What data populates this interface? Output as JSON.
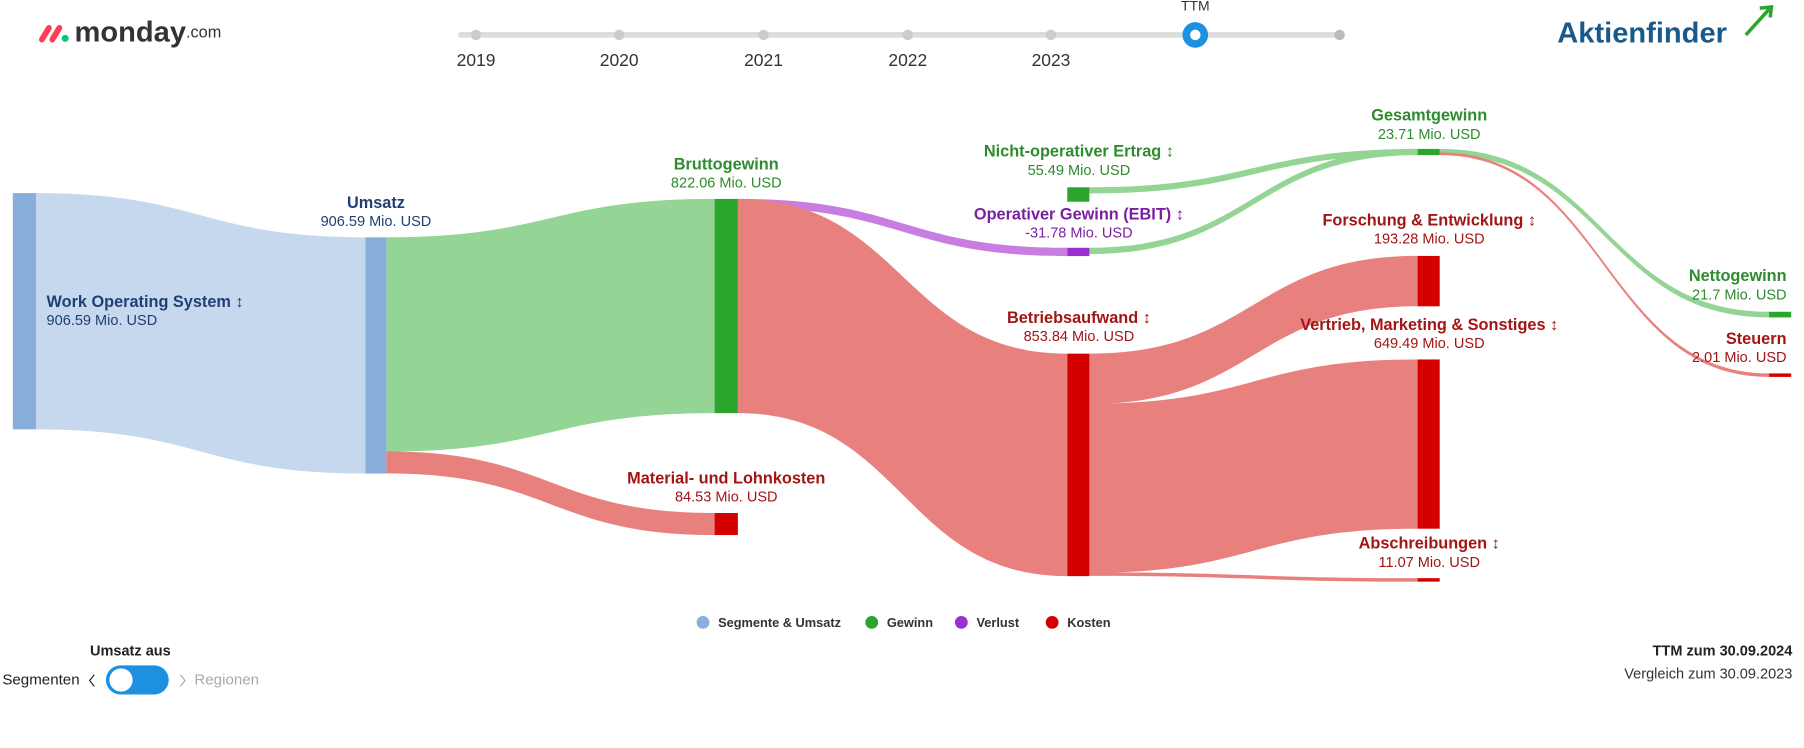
{
  "header": {
    "logo": "monday",
    "logo_suffix": ".com",
    "brand": "Aktienfinder"
  },
  "timeline": {
    "labels": [
      "2019",
      "2020",
      "2021",
      "2022",
      "2023",
      "TTM"
    ]
  },
  "chart_data": {
    "type": "sankey",
    "unit_scale": 0.224,
    "legend": [
      {
        "name": "Segmente & Umsatz",
        "color": "#8aaedc",
        "link_color": "#c5d8ee",
        "text_color": "#213f73"
      },
      {
        "name": "Gewinn",
        "color": "#2ca52c",
        "link_color": "#94d494",
        "text_color": "#2e8b2e"
      },
      {
        "name": "Verlust",
        "color": "#9b30d0",
        "link_color": "#c77ee0",
        "text_color": "#7a1fa2"
      },
      {
        "name": "Kosten",
        "color": "#d40000",
        "link_color": "#e8817e",
        "text_color": "#a31515"
      }
    ],
    "nodes": [
      {
        "name": "Work Operating System ↕",
        "value": 906.59,
        "value_label": "906.59 Mio. USD",
        "color": "#8aaedc"
      },
      {
        "name": "Umsatz",
        "value": 906.59,
        "value_label": "906.59 Mio. USD",
        "color": "#8aaedc"
      },
      {
        "name": "Bruttogewinn",
        "value": 822.06,
        "value_label": "822.06 Mio. USD",
        "color": "#2ca52c"
      },
      {
        "name": "Material- und Lohnkosten",
        "value": 84.53,
        "value_label": "84.53 Mio. USD",
        "color": "#d40000"
      },
      {
        "name": "Betriebsaufwand ↕",
        "value": 853.84,
        "value_label": "853.84 Mio. USD",
        "color": "#d40000"
      },
      {
        "name": "Operativer Gewinn (EBIT) ↕",
        "value": -31.78,
        "value_label": "-31.78 Mio. USD",
        "color": "#9b30d0"
      },
      {
        "name": "Nicht-operativer Ertrag ↕",
        "value": 55.49,
        "value_label": "55.49 Mio. USD",
        "color": "#2ca52c"
      },
      {
        "name": "Gesamtgewinn",
        "value": 23.71,
        "value_label": "23.71 Mio. USD",
        "color": "#2ca52c"
      },
      {
        "name": "Forschung & Entwicklung ↕",
        "value": 193.28,
        "value_label": "193.28 Mio. USD",
        "color": "#d40000"
      },
      {
        "name": "Vertrieb, Marketing & Sonstiges ↕",
        "value": 649.49,
        "value_label": "649.49 Mio. USD",
        "color": "#d40000"
      },
      {
        "name": "Abschreibungen ↕",
        "value": 11.07,
        "value_label": "11.07 Mio. USD",
        "color": "#d40000"
      },
      {
        "name": "Nettogewinn",
        "value": 21.7,
        "value_label": "21.7 Mio. USD",
        "color": "#2ca52c"
      },
      {
        "name": "Steuern",
        "value": 2.01,
        "value_label": "2.01 Mio. USD",
        "color": "#d40000"
      }
    ]
  },
  "footer": {
    "toggle_title": "Umsatz aus",
    "toggle_left": "Segmenten",
    "toggle_right": "Regionen",
    "date": "TTM zum 30.09.2024",
    "comparison": "Vergleich zum 30.09.2023"
  }
}
